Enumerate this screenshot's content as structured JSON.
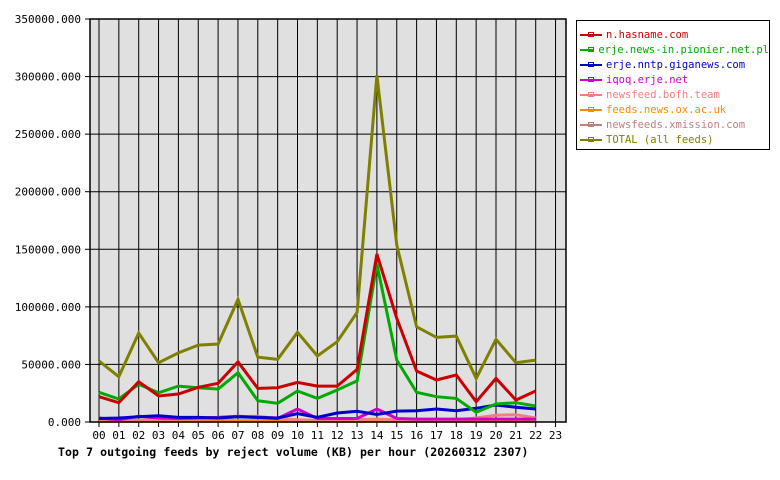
{
  "chart_data": {
    "type": "line",
    "title": "Top 7 outgoing feeds by reject volume (KB) per hour (20260312 2307)",
    "xlabel": "",
    "ylabel": "",
    "x": [
      "00",
      "01",
      "02",
      "03",
      "04",
      "05",
      "06",
      "07",
      "08",
      "09",
      "10",
      "11",
      "12",
      "13",
      "14",
      "15",
      "16",
      "17",
      "18",
      "19",
      "20",
      "21",
      "22",
      "23"
    ],
    "ylim": [
      0,
      350000
    ],
    "yticks": [
      "0.000",
      "50000.000",
      "100000.000",
      "150000.000",
      "200000.000",
      "250000.000",
      "300000.000",
      "350000.000"
    ],
    "grid": true,
    "legend_position": "right",
    "series": [
      {
        "name": "n.hasname.com",
        "color": "#cc0000",
        "values": [
          22000,
          16800,
          35000,
          22600,
          24300,
          30100,
          33600,
          52300,
          29200,
          29800,
          34400,
          31200,
          31200,
          45700,
          145800,
          90000,
          44300,
          36500,
          40800,
          17600,
          37900,
          19100,
          26900,
          null
        ]
      },
      {
        "name": "erje.news-in.pionier.net.pl",
        "color": "#00aa00",
        "values": [
          25800,
          20000,
          32700,
          25400,
          31200,
          29800,
          28600,
          42800,
          18500,
          16200,
          26900,
          20500,
          27800,
          35800,
          137100,
          53800,
          25800,
          22000,
          20500,
          8400,
          15600,
          16800,
          13900,
          null
        ]
      },
      {
        "name": "erje.nntp.giganews.com",
        "color": "#0000cc",
        "values": [
          3000,
          3500,
          4500,
          5500,
          4000,
          4000,
          3500,
          4500,
          4000,
          3500,
          7200,
          4000,
          7800,
          9300,
          6500,
          9500,
          9800,
          11300,
          9800,
          11900,
          14800,
          12800,
          11300,
          null
        ]
      },
      {
        "name": "iqoq.erje.net",
        "color": "#cc00cc",
        "values": [
          3500,
          2000,
          5000,
          3500,
          3000,
          3500,
          4000,
          5000,
          4000,
          3000,
          11300,
          3000,
          3000,
          3000,
          11300,
          3000,
          2500,
          2500,
          2500,
          2500,
          2500,
          2500,
          2500,
          null
        ]
      },
      {
        "name": "newsfeed.bofh.team",
        "color": "#f08080",
        "values": [
          1500,
          1500,
          1500,
          2000,
          2500,
          2500,
          3000,
          4500,
          5000,
          3000,
          2000,
          1500,
          1500,
          2000,
          2500,
          2000,
          2000,
          2000,
          2000,
          3500,
          5800,
          6300,
          3500,
          null
        ]
      },
      {
        "name": "feeds.news.ox.ac.uk",
        "color": "#ff8800",
        "values": [
          500,
          500,
          500,
          500,
          500,
          500,
          500,
          500,
          500,
          500,
          500,
          500,
          500,
          500,
          500,
          500,
          500,
          500,
          500,
          500,
          500,
          500,
          500,
          null
        ]
      },
      {
        "name": "newsfeeds.xmission.com",
        "color": "#c08080",
        "values": [
          1000,
          1000,
          1000,
          1000,
          1000,
          1000,
          1000,
          1000,
          1000,
          1000,
          1000,
          1000,
          1000,
          1000,
          1000,
          1000,
          1000,
          1000,
          1000,
          1000,
          1000,
          1000,
          1000,
          null
        ]
      },
      {
        "name": "TOTAL (all feeds)",
        "color": "#808000",
        "values": [
          53000,
          39300,
          77200,
          51500,
          60000,
          66800,
          67700,
          106500,
          56400,
          54400,
          77900,
          57300,
          69700,
          95200,
          301200,
          153600,
          82700,
          73500,
          74600,
          37900,
          71800,
          51500,
          53800,
          null
        ]
      }
    ]
  },
  "legend": {
    "items": [
      {
        "label": "n.hasname.com",
        "color": "#cc0000"
      },
      {
        "label": "erje.news-in.pionier.net.pl",
        "color": "#00aa00"
      },
      {
        "label": "erje.nntp.giganews.com",
        "color": "#0000cc"
      },
      {
        "label": "iqoq.erje.net",
        "color": "#cc00cc"
      },
      {
        "label": "newsfeed.bofh.team",
        "color": "#f08080"
      },
      {
        "label": "feeds.news.ox.ac.uk",
        "color": "#ff8800"
      },
      {
        "label": "newsfeeds.xmission.com",
        "color": "#c08080"
      },
      {
        "label": "TOTAL (all feeds)",
        "color": "#808000"
      }
    ]
  },
  "colors": {
    "plot_background": "#e0e0e0",
    "grid": "#000000",
    "page_background": "#ffffff"
  }
}
